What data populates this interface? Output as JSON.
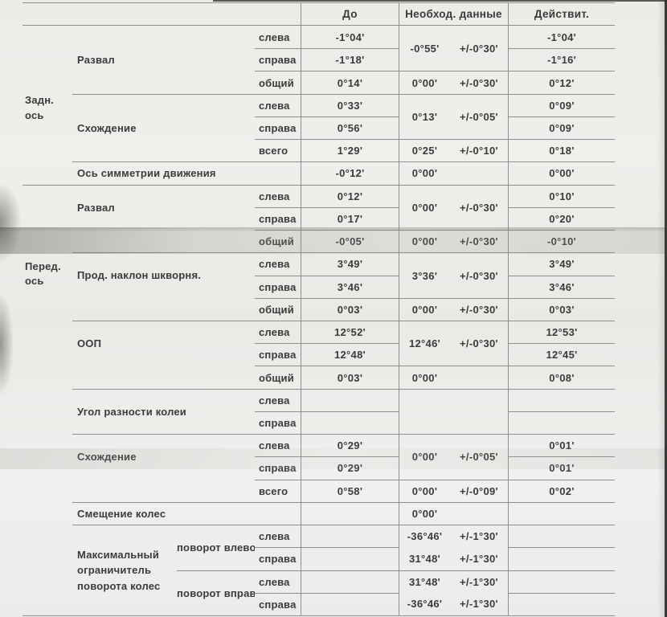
{
  "header": {
    "do": "До",
    "need": "Необход. данные",
    "act": "Действит."
  },
  "axis": {
    "rear": "Задн.\nось",
    "front": "Перед.\nось"
  },
  "groups": {
    "rear_camber": {
      "label": "Развал",
      "need_val": "-0°55'",
      "need_tol": "+/-0°30'",
      "rows": [
        {
          "side": "слева",
          "do": "-1°04'",
          "act": "-1°04'"
        },
        {
          "side": "справа",
          "do": "-1°18'",
          "act": "-1°16'"
        },
        {
          "side": "общий",
          "do": "0°14'",
          "need_val": "0°00'",
          "need_tol": "+/-0°30'",
          "act": "0°12'"
        }
      ]
    },
    "rear_toe": {
      "label": "Схождение",
      "need_val": "0°13'",
      "need_tol": "+/-0°05'",
      "rows": [
        {
          "side": "слева",
          "do": "0°33'",
          "act": "0°09'"
        },
        {
          "side": "справа",
          "do": "0°56'",
          "act": "0°09'"
        },
        {
          "side": "всего",
          "do": "1°29'",
          "need_val": "0°25'",
          "need_tol": "+/-0°10'",
          "act": "0°18'"
        }
      ]
    },
    "thrust_axis": {
      "label": "Ось симметрии движения",
      "do": "-0°12'",
      "need_val": "0°00'",
      "need_tol": "",
      "act": "0°00'"
    },
    "front_camber": {
      "label": "Развал",
      "need_val": "0°00'",
      "need_tol": "+/-0°30'",
      "rows": [
        {
          "side": "слева",
          "do": "0°12'",
          "act": "0°10'"
        },
        {
          "side": "справа",
          "do": "0°17'",
          "act": "0°20'"
        },
        {
          "side": "общий",
          "do": "-0°05'",
          "need_val": "0°00'",
          "need_tol": "+/-0°30'",
          "act": "-0°10'"
        }
      ]
    },
    "caster": {
      "label": "Прод. наклон шкворня.",
      "need_val": "3°36'",
      "need_tol": "+/-0°30'",
      "rows": [
        {
          "side": "слева",
          "do": "3°49'",
          "act": "3°49'"
        },
        {
          "side": "справа",
          "do": "3°46'",
          "act": "3°46'"
        },
        {
          "side": "общий",
          "do": "0°03'",
          "need_val": "0°00'",
          "need_tol": "+/-0°30'",
          "act": "0°03'"
        }
      ]
    },
    "oop": {
      "label": "ООП",
      "need_val": "12°46'",
      "need_tol": "+/-0°30'",
      "rows": [
        {
          "side": "слева",
          "do": "12°52'",
          "act": "12°53'"
        },
        {
          "side": "справа",
          "do": "12°48'",
          "act": "12°45'"
        },
        {
          "side": "общий",
          "do": "0°03'",
          "need_val": "0°00'",
          "need_tol": "",
          "act": "0°08'"
        }
      ]
    },
    "track_diff": {
      "label": "Угол разности колеи",
      "rows": [
        {
          "side": "слева"
        },
        {
          "side": "справа"
        }
      ]
    },
    "front_toe": {
      "label": "Схождение",
      "need_val": "0°00'",
      "need_tol": "+/-0°05'",
      "rows": [
        {
          "side": "слева",
          "do": "0°29'",
          "act": "0°01'"
        },
        {
          "side": "справа",
          "do": "0°29'",
          "act": "0°01'"
        },
        {
          "side": "всего",
          "do": "0°58'",
          "need_val": "0°00'",
          "need_tol": "+/-0°09'",
          "act": "0°02'"
        }
      ]
    },
    "wheel_offset": {
      "label": "Смещение колес",
      "need_val": "0°00'",
      "need_tol": ""
    },
    "max_turn": {
      "label": "Максимальный\nограничитель\nповорота колес",
      "turn_left": {
        "label": "поворот влево",
        "rows": [
          {
            "side": "слева",
            "need_val": "-36°46'",
            "need_tol": "+/-1°30'"
          },
          {
            "side": "справа",
            "need_val": "31°48'",
            "need_tol": "+/-1°30'"
          }
        ]
      },
      "turn_right": {
        "label": "поворот вправ",
        "rows": [
          {
            "side": "слева",
            "need_val": "31°48'",
            "need_tol": "+/-1°30'"
          },
          {
            "side": "справа",
            "need_val": "-36°46'",
            "need_tol": "+/-1°30'"
          }
        ]
      }
    }
  }
}
